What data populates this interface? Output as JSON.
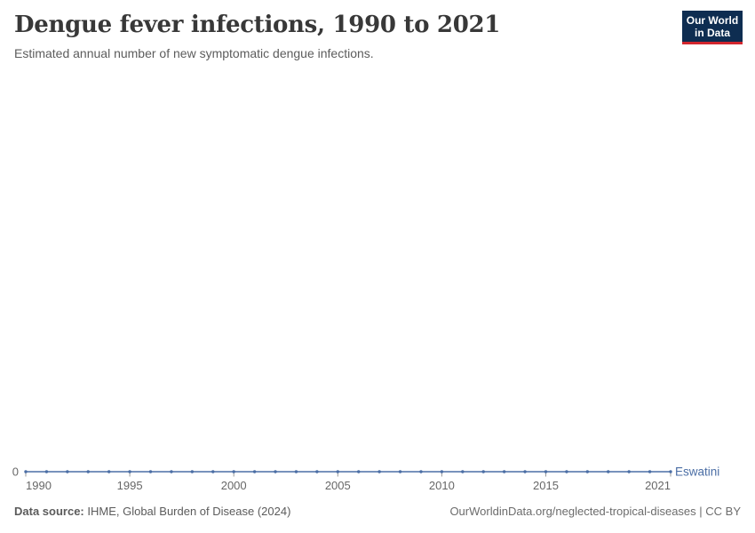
{
  "header": {
    "title": "Dengue fever infections, 1990 to 2021",
    "subtitle": "Estimated annual number of new symptomatic dengue infections.",
    "logo": {
      "line1": "Our World",
      "line2": "in Data"
    }
  },
  "footer": {
    "source_label": "Data source:",
    "source_text": " IHME, Global Burden of Disease (2024)",
    "attribution": "OurWorldinData.org/neglected-tropical-diseases | CC BY"
  },
  "chart_data": {
    "type": "line",
    "title": "Dengue fever infections, 1990 to 2021",
    "xlabel": "",
    "ylabel": "",
    "x": [
      1990,
      1991,
      1992,
      1993,
      1994,
      1995,
      1996,
      1997,
      1998,
      1999,
      2000,
      2001,
      2002,
      2003,
      2004,
      2005,
      2006,
      2007,
      2008,
      2009,
      2010,
      2011,
      2012,
      2013,
      2014,
      2015,
      2016,
      2017,
      2018,
      2019,
      2020,
      2021
    ],
    "series": [
      {
        "name": "Eswatini",
        "values": [
          0,
          0,
          0,
          0,
          0,
          0,
          0,
          0,
          0,
          0,
          0,
          0,
          0,
          0,
          0,
          0,
          0,
          0,
          0,
          0,
          0,
          0,
          0,
          0,
          0,
          0,
          0,
          0,
          0,
          0,
          0,
          0
        ]
      }
    ],
    "x_ticks": [
      1990,
      1995,
      2000,
      2005,
      2010,
      2015,
      2021
    ],
    "y_ticks": [
      0
    ],
    "ylim": [
      0,
      0
    ],
    "grid": false,
    "legend": "end-of-line-label",
    "colors": {
      "line": "#4b6ea5",
      "axis_text": "#676767",
      "tick_mark": "#999999"
    }
  }
}
